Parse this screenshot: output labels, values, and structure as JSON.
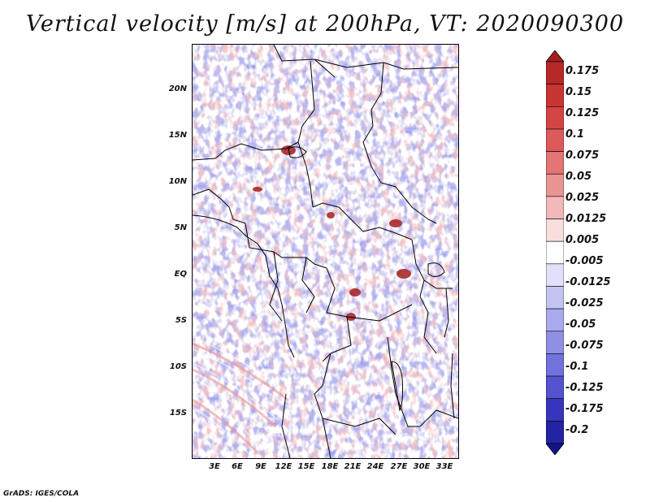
{
  "title": "Vertical velocity [m/s] at 200hPa, VT: 2020090300",
  "y_ticks": [
    "20N",
    "15N",
    "10N",
    "5N",
    "EQ",
    "5S",
    "10S",
    "15S"
  ],
  "x_ticks": [
    "3E",
    "6E",
    "9E",
    "12E",
    "15E",
    "18E",
    "21E",
    "24E",
    "27E",
    "30E",
    "33E"
  ],
  "colorbar": {
    "labels": [
      "0.175",
      "0.15",
      "0.125",
      "0.1",
      "0.075",
      "0.05",
      "0.025",
      "0.0125",
      "0.005",
      "-0.005",
      "-0.0125",
      "-0.025",
      "-0.05",
      "-0.075",
      "-0.1",
      "-0.125",
      "-0.175",
      "-0.2"
    ],
    "colors": [
      "#a51e1e",
      "#b82828",
      "#c93434",
      "#d44444",
      "#de5a5a",
      "#e37575",
      "#eb9494",
      "#f3b8b8",
      "#f9dede",
      "#ffffff",
      "#e0e0fa",
      "#c4c4f3",
      "#a9a9ee",
      "#8f8fe6",
      "#7272dd",
      "#5454d0",
      "#3636bd",
      "#2323a6",
      "#14148a"
    ]
  },
  "credit": "GrADS: IGES/COLA"
}
